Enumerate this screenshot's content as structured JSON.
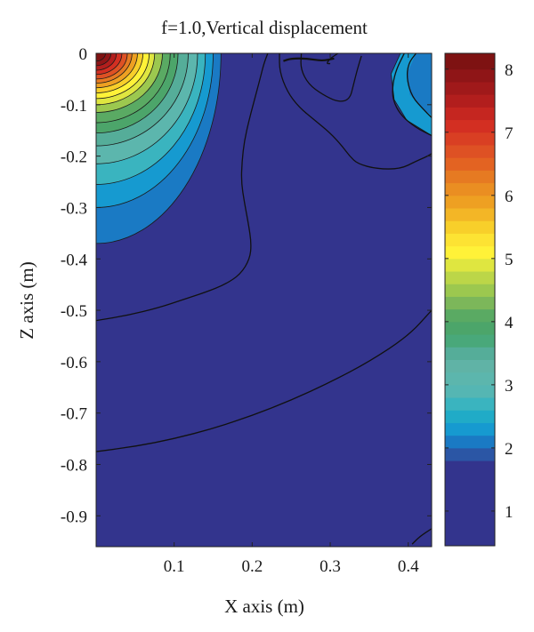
{
  "chart_data": {
    "type": "heatmap",
    "subtype": "filled-contour",
    "title": "f=1.0,Vertical displacement",
    "xlabel": "X axis (m)",
    "ylabel": "Z axis (m)",
    "xlim": [
      0.0,
      0.43
    ],
    "ylim": [
      -0.96,
      0.0
    ],
    "x_ticks": [
      0.1,
      0.2,
      0.3,
      0.4
    ],
    "x_tick_labels": [
      "0.1",
      "0.2",
      "0.3",
      "0.4"
    ],
    "y_ticks": [
      0,
      -0.1,
      -0.2,
      -0.3,
      -0.4,
      -0.5,
      -0.6,
      -0.7,
      -0.8,
      -0.9
    ],
    "y_tick_labels": [
      "0",
      "-0.1",
      "-0.2",
      "-0.3",
      "-0.4",
      "-0.5",
      "-0.6",
      "-0.7",
      "-0.8",
      "-0.9"
    ],
    "colorbar": {
      "range": [
        0.45,
        8.25
      ],
      "ticks": [
        1,
        2,
        3,
        4,
        5,
        6,
        7,
        8
      ],
      "tick_labels": [
        "1",
        "2",
        "3",
        "4",
        "5",
        "6",
        "7",
        "8"
      ],
      "levels": [
        {
          "from": 0.45,
          "to": 1.8,
          "color": "#33348d"
        },
        {
          "from": 1.8,
          "to": 2.0,
          "color": "#2b56a5"
        },
        {
          "from": 2.0,
          "to": 2.2,
          "color": "#1a7ac4"
        },
        {
          "from": 2.2,
          "to": 2.4,
          "color": "#169ad0"
        },
        {
          "from": 2.4,
          "to": 2.6,
          "color": "#20abc7"
        },
        {
          "from": 2.6,
          "to": 2.8,
          "color": "#3ab4bf"
        },
        {
          "from": 2.8,
          "to": 3.0,
          "color": "#55b6b3"
        },
        {
          "from": 3.0,
          "to": 3.2,
          "color": "#5cb6ad"
        },
        {
          "from": 3.2,
          "to": 3.4,
          "color": "#60b3a6"
        },
        {
          "from": 3.4,
          "to": 3.6,
          "color": "#55ad99"
        },
        {
          "from": 3.6,
          "to": 3.8,
          "color": "#49a87a"
        },
        {
          "from": 3.8,
          "to": 4.0,
          "color": "#4ca56a"
        },
        {
          "from": 4.0,
          "to": 4.2,
          "color": "#5aaa63"
        },
        {
          "from": 4.2,
          "to": 4.4,
          "color": "#7cb75a"
        },
        {
          "from": 4.4,
          "to": 4.6,
          "color": "#9cc84f"
        },
        {
          "from": 4.6,
          "to": 4.8,
          "color": "#bcd648"
        },
        {
          "from": 4.8,
          "to": 5.0,
          "color": "#dfe640"
        },
        {
          "from": 5.0,
          "to": 5.2,
          "color": "#fff238"
        },
        {
          "from": 5.2,
          "to": 5.4,
          "color": "#fde333"
        },
        {
          "from": 5.4,
          "to": 5.6,
          "color": "#f8cf2a"
        },
        {
          "from": 5.6,
          "to": 5.8,
          "color": "#f3b626"
        },
        {
          "from": 5.8,
          "to": 6.0,
          "color": "#eea022"
        },
        {
          "from": 6.0,
          "to": 6.2,
          "color": "#ea8e22"
        },
        {
          "from": 6.2,
          "to": 6.4,
          "color": "#e67a22"
        },
        {
          "from": 6.4,
          "to": 6.6,
          "color": "#e36322"
        },
        {
          "from": 6.6,
          "to": 6.8,
          "color": "#de5124"
        },
        {
          "from": 6.8,
          "to": 7.0,
          "color": "#d93f23"
        },
        {
          "from": 7.0,
          "to": 7.2,
          "color": "#d32f22"
        },
        {
          "from": 7.2,
          "to": 7.4,
          "color": "#c52620"
        },
        {
          "from": 7.4,
          "to": 7.6,
          "color": "#b21e1d"
        },
        {
          "from": 7.6,
          "to": 7.8,
          "color": "#a0191a"
        },
        {
          "from": 7.8,
          "to": 8.0,
          "color": "#8f1517"
        },
        {
          "from": 8.0,
          "to": 8.25,
          "color": "#7e1212"
        }
      ]
    },
    "regions": [
      {
        "name": "source-corner",
        "description": "high-displacement lobe at x=0, z=0",
        "peak_value": 8.2
      },
      {
        "name": "right-surface-lobe",
        "description": "secondary lobe near x=0.39-0.43, z=0 to -0.16",
        "peak_value": 2.3
      }
    ],
    "contour_lines": [
      {
        "name": "contour-1",
        "points": [
          [
            0.0,
            -0.52
          ],
          [
            0.04,
            -0.51
          ],
          [
            0.08,
            -0.495
          ],
          [
            0.11,
            -0.48
          ],
          [
            0.14,
            -0.465
          ],
          [
            0.165,
            -0.45
          ],
          [
            0.185,
            -0.43
          ],
          [
            0.197,
            -0.4
          ],
          [
            0.199,
            -0.37
          ],
          [
            0.195,
            -0.33
          ],
          [
            0.19,
            -0.29
          ],
          [
            0.186,
            -0.25
          ],
          [
            0.187,
            -0.21
          ],
          [
            0.19,
            -0.17
          ],
          [
            0.196,
            -0.13
          ],
          [
            0.203,
            -0.09
          ],
          [
            0.21,
            -0.05
          ],
          [
            0.215,
            -0.02
          ],
          [
            0.22,
            0.0
          ]
        ]
      },
      {
        "name": "contour-2",
        "points": [
          [
            0.0,
            -0.775
          ],
          [
            0.05,
            -0.765
          ],
          [
            0.1,
            -0.75
          ],
          [
            0.15,
            -0.73
          ],
          [
            0.2,
            -0.705
          ],
          [
            0.25,
            -0.675
          ],
          [
            0.3,
            -0.64
          ],
          [
            0.35,
            -0.6
          ],
          [
            0.4,
            -0.55
          ],
          [
            0.43,
            -0.5
          ]
        ]
      },
      {
        "name": "contour-3",
        "points": [
          [
            0.235,
            0.0
          ],
          [
            0.235,
            -0.035
          ],
          [
            0.245,
            -0.075
          ],
          [
            0.26,
            -0.105
          ],
          [
            0.28,
            -0.13
          ],
          [
            0.3,
            -0.155
          ],
          [
            0.315,
            -0.18
          ],
          [
            0.325,
            -0.2
          ],
          [
            0.335,
            -0.215
          ],
          [
            0.36,
            -0.225
          ],
          [
            0.39,
            -0.225
          ],
          [
            0.41,
            -0.21
          ],
          [
            0.425,
            -0.2
          ],
          [
            0.43,
            -0.195
          ]
        ]
      },
      {
        "name": "contour-4",
        "points": [
          [
            0.263,
            0.0
          ],
          [
            0.262,
            -0.03
          ],
          [
            0.272,
            -0.06
          ],
          [
            0.29,
            -0.08
          ],
          [
            0.31,
            -0.095
          ],
          [
            0.325,
            -0.09
          ],
          [
            0.33,
            -0.06
          ],
          [
            0.335,
            -0.03
          ],
          [
            0.34,
            -0.005
          ]
        ]
      },
      {
        "name": "contour-5",
        "points": [
          [
            0.31,
            0.0
          ],
          [
            0.3,
            -0.01
          ],
          [
            0.295,
            -0.02
          ],
          [
            0.3,
            -0.02
          ]
        ]
      },
      {
        "name": "contour-6",
        "points": [
          [
            0.395,
            0.0
          ],
          [
            0.385,
            -0.03
          ],
          [
            0.38,
            -0.06
          ],
          [
            0.38,
            -0.09
          ],
          [
            0.39,
            -0.12
          ],
          [
            0.41,
            -0.145
          ],
          [
            0.43,
            -0.16
          ]
        ]
      },
      {
        "name": "contour-7",
        "points": [
          [
            0.41,
            0.0
          ],
          [
            0.4,
            -0.02
          ],
          [
            0.398,
            -0.05
          ],
          [
            0.405,
            -0.085
          ],
          [
            0.42,
            -0.11
          ],
          [
            0.43,
            -0.125
          ]
        ]
      },
      {
        "name": "contour-8",
        "points": [
          [
            0.405,
            -0.955
          ],
          [
            0.415,
            -0.94
          ],
          [
            0.43,
            -0.925
          ]
        ]
      }
    ],
    "contour_lines_dark": [
      {
        "name": "dark-contour",
        "points": [
          [
            0.24,
            -0.015
          ],
          [
            0.25,
            -0.01
          ],
          [
            0.27,
            -0.01
          ],
          [
            0.29,
            -0.015
          ],
          [
            0.305,
            -0.01
          ]
        ]
      }
    ]
  }
}
